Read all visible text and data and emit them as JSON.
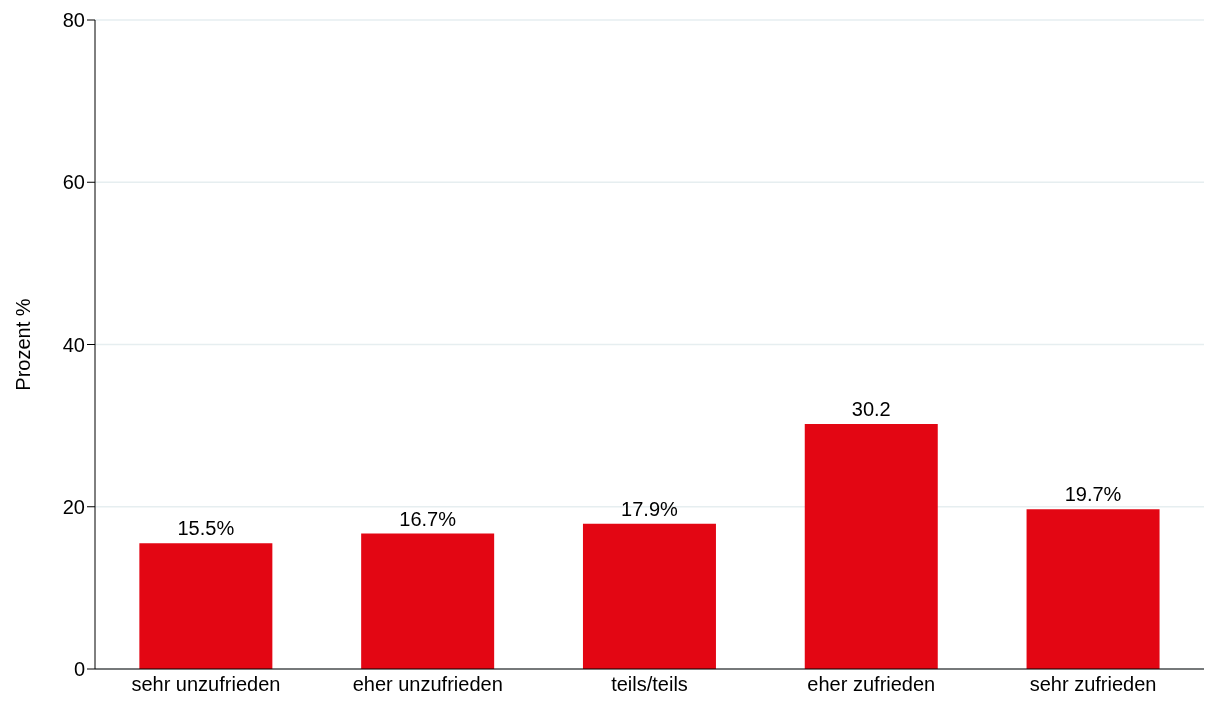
{
  "chart_data": {
    "type": "bar",
    "ylabel": "Prozent %",
    "categories": [
      "sehr unzufrieden",
      "eher unzufrieden",
      "teils/teils",
      "eher zufrieden",
      "sehr zufrieden"
    ],
    "values": [
      15.5,
      16.7,
      17.9,
      30.2,
      19.7
    ],
    "value_labels": [
      "15.5%",
      "16.7%",
      "17.9%",
      "30.2",
      "19.7%"
    ],
    "color": "#e30613",
    "ylim": [
      0,
      80
    ],
    "yticks": [
      0,
      20,
      40,
      60,
      80
    ],
    "grid": "y"
  }
}
